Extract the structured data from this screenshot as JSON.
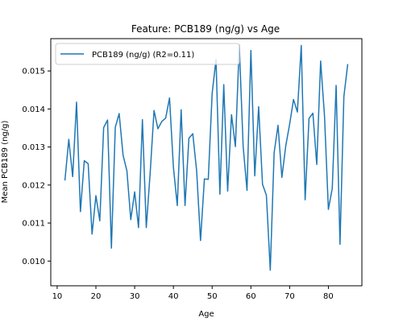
{
  "chart_data": {
    "type": "line",
    "title": "Feature: PCB189 (ng/g) vs Age",
    "xlabel": "Age",
    "ylabel": "Mean PCB189 (ng/g)",
    "xlim": [
      8.35,
      88.65
    ],
    "ylim": [
      0.00935,
      0.01585
    ],
    "xticks": [
      10,
      20,
      30,
      40,
      50,
      60,
      70,
      80
    ],
    "yticks": [
      0.01,
      0.011,
      0.012,
      0.013,
      0.014,
      0.015
    ],
    "ytick_labels": [
      "0.010",
      "0.011",
      "0.012",
      "0.013",
      "0.014",
      "0.015"
    ],
    "grid": false,
    "legend_position": "top-left",
    "series": [
      {
        "name": "PCB189 (ng/g) (R2=0.11)",
        "color": "#1f77b4",
        "x": [
          12,
          13,
          14,
          15,
          16,
          17,
          18,
          19,
          20,
          21,
          22,
          23,
          24,
          25,
          26,
          27,
          28,
          29,
          30,
          31,
          32,
          33,
          34,
          35,
          36,
          37,
          38,
          39,
          40,
          41,
          42,
          43,
          44,
          45,
          46,
          47,
          48,
          49,
          50,
          51,
          52,
          53,
          54,
          55,
          56,
          57,
          58,
          59,
          60,
          61,
          62,
          63,
          64,
          65,
          66,
          67,
          68,
          69,
          70,
          71,
          72,
          73,
          74,
          75,
          76,
          77,
          78,
          79,
          80,
          81,
          82,
          83,
          84,
          85
        ],
        "y": [
          0.01212,
          0.0132,
          0.01222,
          0.01418,
          0.0113,
          0.01264,
          0.01256,
          0.01071,
          0.01172,
          0.01106,
          0.01351,
          0.01371,
          0.01034,
          0.01352,
          0.01388,
          0.01279,
          0.01237,
          0.01109,
          0.01182,
          0.01088,
          0.01372,
          0.01088,
          0.01231,
          0.01396,
          0.01348,
          0.01367,
          0.01376,
          0.01429,
          0.01247,
          0.01146,
          0.01398,
          0.01146,
          0.01323,
          0.01335,
          0.01237,
          0.01054,
          0.01216,
          0.01215,
          0.01441,
          0.0153,
          0.01176,
          0.01464,
          0.01184,
          0.01385,
          0.01301,
          0.01568,
          0.01302,
          0.01186,
          0.01554,
          0.01224,
          0.01406,
          0.01202,
          0.01173,
          0.00976,
          0.01285,
          0.01357,
          0.0122,
          0.01303,
          0.0136,
          0.01425,
          0.01392,
          0.01567,
          0.01161,
          0.01375,
          0.01389,
          0.01254,
          0.01526,
          0.01382,
          0.01136,
          0.01191,
          0.01462,
          0.01044,
          0.01433,
          0.01518
        ]
      }
    ]
  }
}
